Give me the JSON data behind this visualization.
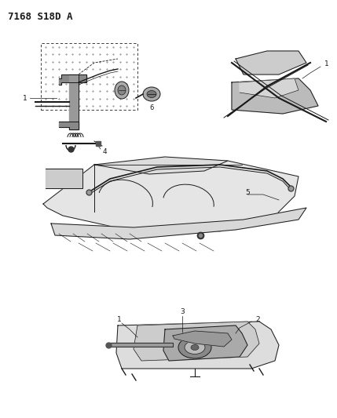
{
  "title": "7168 S18D A",
  "bg_color": "#ffffff",
  "fig_width": 4.29,
  "fig_height": 5.33,
  "dpi": 100,
  "lc": "#1a1a1a",
  "lw": 0.7
}
